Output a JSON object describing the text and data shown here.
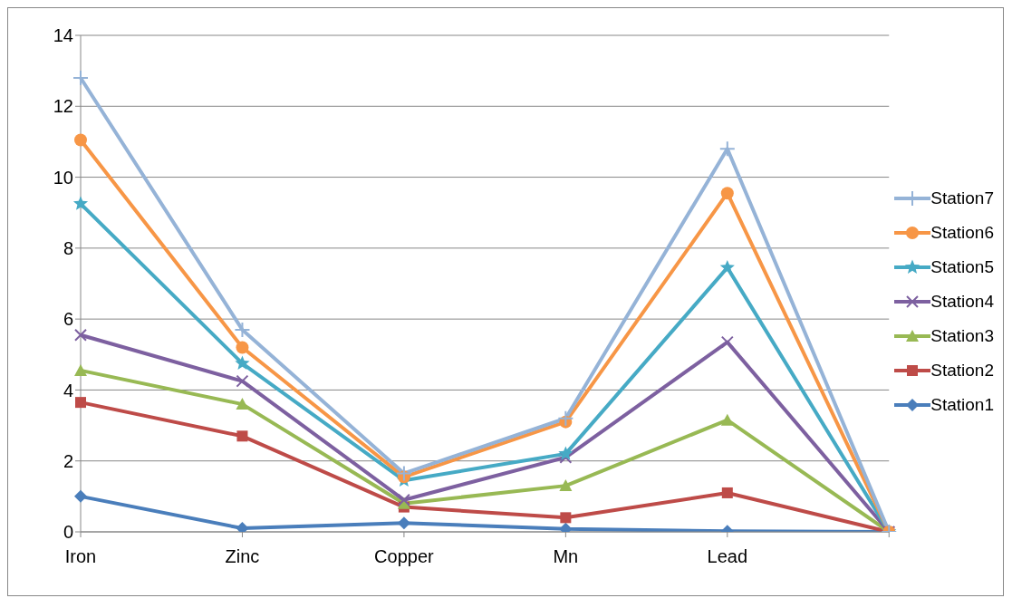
{
  "chart_data": {
    "type": "line",
    "categories": [
      "Iron",
      "Zinc",
      "Copper",
      "Mn",
      "Lead",
      null
    ],
    "series": [
      {
        "name": "Station1",
        "color": "#4a7ebb",
        "marker": "diamond",
        "values": [
          1.0,
          0.1,
          0.25,
          0.08,
          0.02,
          0
        ]
      },
      {
        "name": "Station2",
        "color": "#be4b48",
        "marker": "square",
        "values": [
          3.65,
          2.7,
          0.7,
          0.4,
          1.1,
          0
        ]
      },
      {
        "name": "Station3",
        "color": "#98b954",
        "marker": "triangle",
        "values": [
          4.55,
          3.6,
          0.8,
          1.3,
          3.15,
          0
        ]
      },
      {
        "name": "Station4",
        "color": "#7d60a0",
        "marker": "cross",
        "values": [
          5.55,
          4.25,
          0.9,
          2.1,
          5.35,
          0
        ]
      },
      {
        "name": "Station5",
        "color": "#46aac5",
        "marker": "star",
        "values": [
          9.25,
          4.75,
          1.45,
          2.2,
          7.45,
          0
        ]
      },
      {
        "name": "Station6",
        "color": "#f79646",
        "marker": "circle",
        "values": [
          11.05,
          5.2,
          1.55,
          3.1,
          9.55,
          0
        ]
      },
      {
        "name": "Station7",
        "color": "#95b3d7",
        "marker": "plus",
        "values": [
          12.8,
          5.7,
          1.65,
          3.2,
          10.8,
          0
        ]
      }
    ],
    "ylim": [
      0,
      14
    ],
    "yticks": [
      0,
      2,
      4,
      6,
      8,
      10,
      12,
      14
    ],
    "grid": "y",
    "legend": "right",
    "line_style": "solid"
  }
}
